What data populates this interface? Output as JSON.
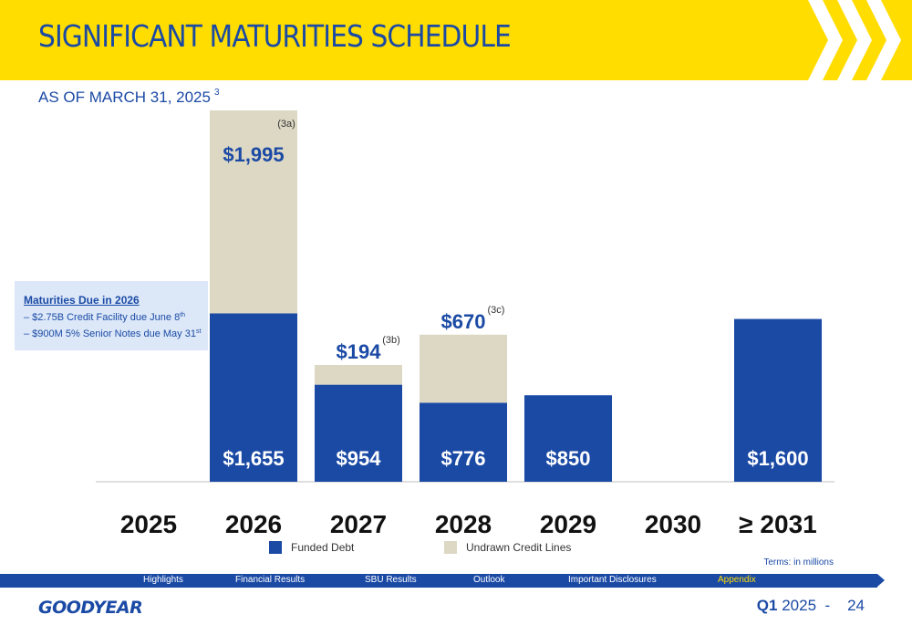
{
  "header": {
    "title": "SIGNIFICANT MATURITIES SCHEDULE",
    "subtitle": "AS OF MARCH 31, 2025",
    "subtitle_footnote": "3"
  },
  "callout": {
    "title": "Maturities Due in 2026",
    "items": [
      {
        "text": "–  $2.75B Credit Facility due June 8",
        "sup": "th"
      },
      {
        "text": "–  $900M 5% Senior Notes due May 31",
        "sup": "st"
      }
    ]
  },
  "chart_data": {
    "type": "bar",
    "stacked": true,
    "categories": [
      "2025",
      "2026",
      "2027",
      "2028",
      "2029",
      "2030",
      "≥ 2031"
    ],
    "series": [
      {
        "name": "Funded Debt",
        "color": "#1B4AA5",
        "values": [
          0,
          1655,
          954,
          776,
          850,
          0,
          1600
        ],
        "labels": [
          "",
          "$1,655",
          "$954",
          "$776",
          "$850",
          "",
          "$1,600"
        ]
      },
      {
        "name": "Undrawn Credit Lines",
        "color": "#DDD8C4",
        "values": [
          0,
          1995,
          194,
          670,
          0,
          0,
          0
        ],
        "labels": [
          "",
          "$1,995",
          "$194",
          "$670",
          "",
          "",
          ""
        ],
        "footnotes": [
          "",
          "(3a)",
          "(3b)",
          "(3c)",
          "",
          "",
          ""
        ]
      }
    ],
    "ylim": [
      0,
      3650
    ],
    "grid": false,
    "legend": "bottom"
  },
  "units_note": "Terms: in millions",
  "nav": {
    "items": [
      "Highlights",
      "Financial Results",
      "SBU Results",
      "Outlook",
      "Important Disclosures",
      "Appendix"
    ],
    "active": "Appendix"
  },
  "footer": {
    "logo": "GOODYEAR",
    "quarter": "Q1",
    "year": "2025",
    "separator": "-",
    "page": "24"
  },
  "colors": {
    "brand_blue": "#1B4AA5",
    "brand_yellow": "#FFDD00",
    "undrawn": "#DDD8C4"
  }
}
